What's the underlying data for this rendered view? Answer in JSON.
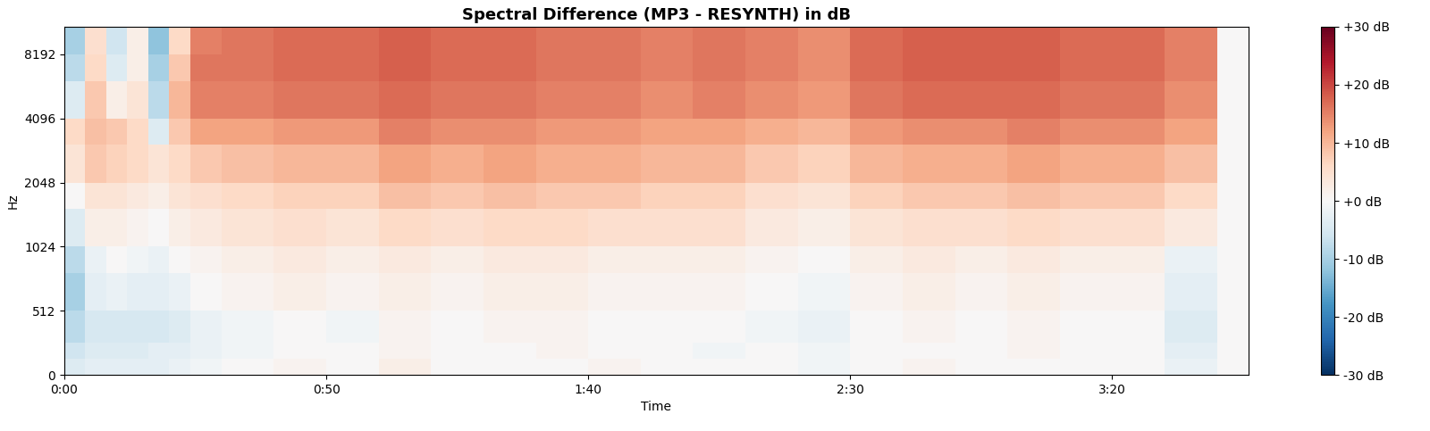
{
  "chart_data": {
    "type": "heatmap",
    "title": "Spectral Difference (MP3 - RESYNTH) in dB",
    "x_label": "Time",
    "y_label": "Hz",
    "log": "y",
    "grid": false,
    "xlim": [
      0,
      226
    ],
    "ylim": [
      0,
      11025
    ],
    "xticks": [
      {
        "value": 0,
        "label": "0:00"
      },
      {
        "value": 50,
        "label": "0:50"
      },
      {
        "value": 100,
        "label": "1:40"
      },
      {
        "value": 150,
        "label": "2:30"
      },
      {
        "value": 200,
        "label": "3:20"
      }
    ],
    "yticks": [
      0,
      512,
      1024,
      2048,
      4096,
      8192
    ],
    "time_edges": [
      0,
      4,
      8,
      12,
      16,
      20,
      24,
      30,
      40,
      50,
      60,
      70,
      80,
      90,
      100,
      110,
      120,
      130,
      140,
      150,
      160,
      170,
      180,
      190,
      200,
      210,
      220,
      226
    ],
    "freq_edges": [
      0,
      128,
      256,
      512,
      768,
      1024,
      1536,
      2048,
      3072,
      4096,
      6144,
      8192,
      11025
    ],
    "cells": [
      [
        -4,
        -3,
        -3,
        -3,
        -3,
        -2,
        -1,
        0,
        1,
        0,
        2,
        0,
        0,
        0,
        1,
        0,
        0,
        0,
        -1,
        0,
        1,
        0,
        0,
        0,
        0,
        -2,
        0
      ],
      [
        -6,
        -4,
        -4,
        -4,
        -3,
        -3,
        -2,
        -1,
        0,
        0,
        1,
        0,
        0,
        1,
        0,
        0,
        -1,
        0,
        -1,
        0,
        0,
        0,
        1,
        0,
        0,
        -3,
        0
      ],
      [
        -8,
        -5,
        -5,
        -5,
        -5,
        -4,
        -2,
        -1,
        0,
        -1,
        1,
        0,
        1,
        1,
        0,
        0,
        0,
        -1,
        -2,
        0,
        1,
        0,
        1,
        0,
        0,
        -4,
        0
      ],
      [
        -10,
        -3,
        -2,
        -3,
        -3,
        -2,
        0,
        1,
        2,
        1,
        2,
        1,
        2,
        2,
        1,
        1,
        1,
        0,
        -1,
        1,
        2,
        1,
        2,
        1,
        1,
        -3,
        0
      ],
      [
        -8,
        -2,
        0,
        -1,
        -2,
        0,
        1,
        2,
        3,
        2,
        3,
        2,
        3,
        3,
        2,
        2,
        2,
        1,
        0,
        2,
        3,
        2,
        3,
        2,
        2,
        -2,
        0
      ],
      [
        -4,
        2,
        2,
        1,
        0,
        2,
        3,
        4,
        5,
        4,
        6,
        5,
        6,
        6,
        5,
        5,
        5,
        3,
        2,
        4,
        5,
        5,
        6,
        5,
        5,
        3,
        0
      ],
      [
        0,
        4,
        4,
        3,
        2,
        4,
        5,
        6,
        7,
        7,
        9,
        8,
        9,
        8,
        8,
        7,
        7,
        5,
        4,
        7,
        8,
        8,
        9,
        8,
        8,
        6,
        0
      ],
      [
        4,
        8,
        7,
        6,
        4,
        6,
        8,
        9,
        10,
        10,
        12,
        11,
        12,
        11,
        11,
        10,
        10,
        8,
        7,
        10,
        11,
        11,
        12,
        11,
        11,
        9,
        0
      ],
      [
        6,
        9,
        8,
        6,
        -4,
        8,
        12,
        12,
        13,
        13,
        15,
        14,
        14,
        13,
        13,
        12,
        12,
        11,
        10,
        13,
        14,
        14,
        15,
        14,
        14,
        12,
        0
      ],
      [
        -4,
        8,
        2,
        4,
        -8,
        10,
        15,
        15,
        16,
        16,
        17,
        16,
        16,
        15,
        15,
        14,
        15,
        14,
        13,
        16,
        17,
        17,
        17,
        16,
        16,
        14,
        0
      ],
      [
        -8,
        6,
        -4,
        2,
        -10,
        8,
        16,
        16,
        17,
        17,
        18,
        17,
        17,
        16,
        16,
        15,
        16,
        15,
        14,
        17,
        18,
        18,
        18,
        17,
        17,
        15,
        0
      ],
      [
        -10,
        5,
        -6,
        2,
        -12,
        6,
        15,
        16,
        17,
        17,
        18,
        17,
        17,
        16,
        16,
        15,
        16,
        15,
        14,
        17,
        18,
        18,
        18,
        17,
        17,
        15,
        0
      ]
    ],
    "color_range": [
      -30,
      30
    ],
    "color_ticks": [
      {
        "value": -30,
        "label": "-30 dB"
      },
      {
        "value": -20,
        "label": "-20 dB"
      },
      {
        "value": -10,
        "label": "-10 dB"
      },
      {
        "value": 0,
        "label": "+0 dB"
      },
      {
        "value": 10,
        "label": "+10 dB"
      },
      {
        "value": 20,
        "label": "+20 dB"
      },
      {
        "value": 30,
        "label": "+30 dB"
      }
    ]
  }
}
